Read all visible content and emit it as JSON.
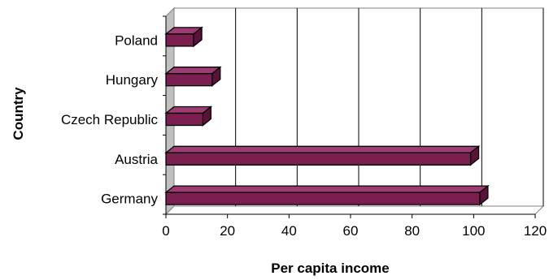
{
  "chart_data": {
    "type": "bar",
    "orientation": "horizontal",
    "style": "3d",
    "categories": [
      "Poland",
      "Hungary",
      "Czech Republic",
      "Austria",
      "Germany"
    ],
    "values": [
      9,
      15,
      12,
      99,
      102
    ],
    "xlabel": "Per capita income",
    "ylabel": "Country",
    "xlim": [
      0,
      120
    ],
    "xticks": [
      "0",
      "20",
      "40",
      "60",
      "80",
      "100",
      "120"
    ],
    "grid": "vertical",
    "legend": "none",
    "colors": {
      "bar_front": "#7a1f50",
      "bar_top": "#9c3c72",
      "bar_side": "#5a1239",
      "back_wall": "#c0c0c0",
      "grid": "#000000"
    }
  }
}
